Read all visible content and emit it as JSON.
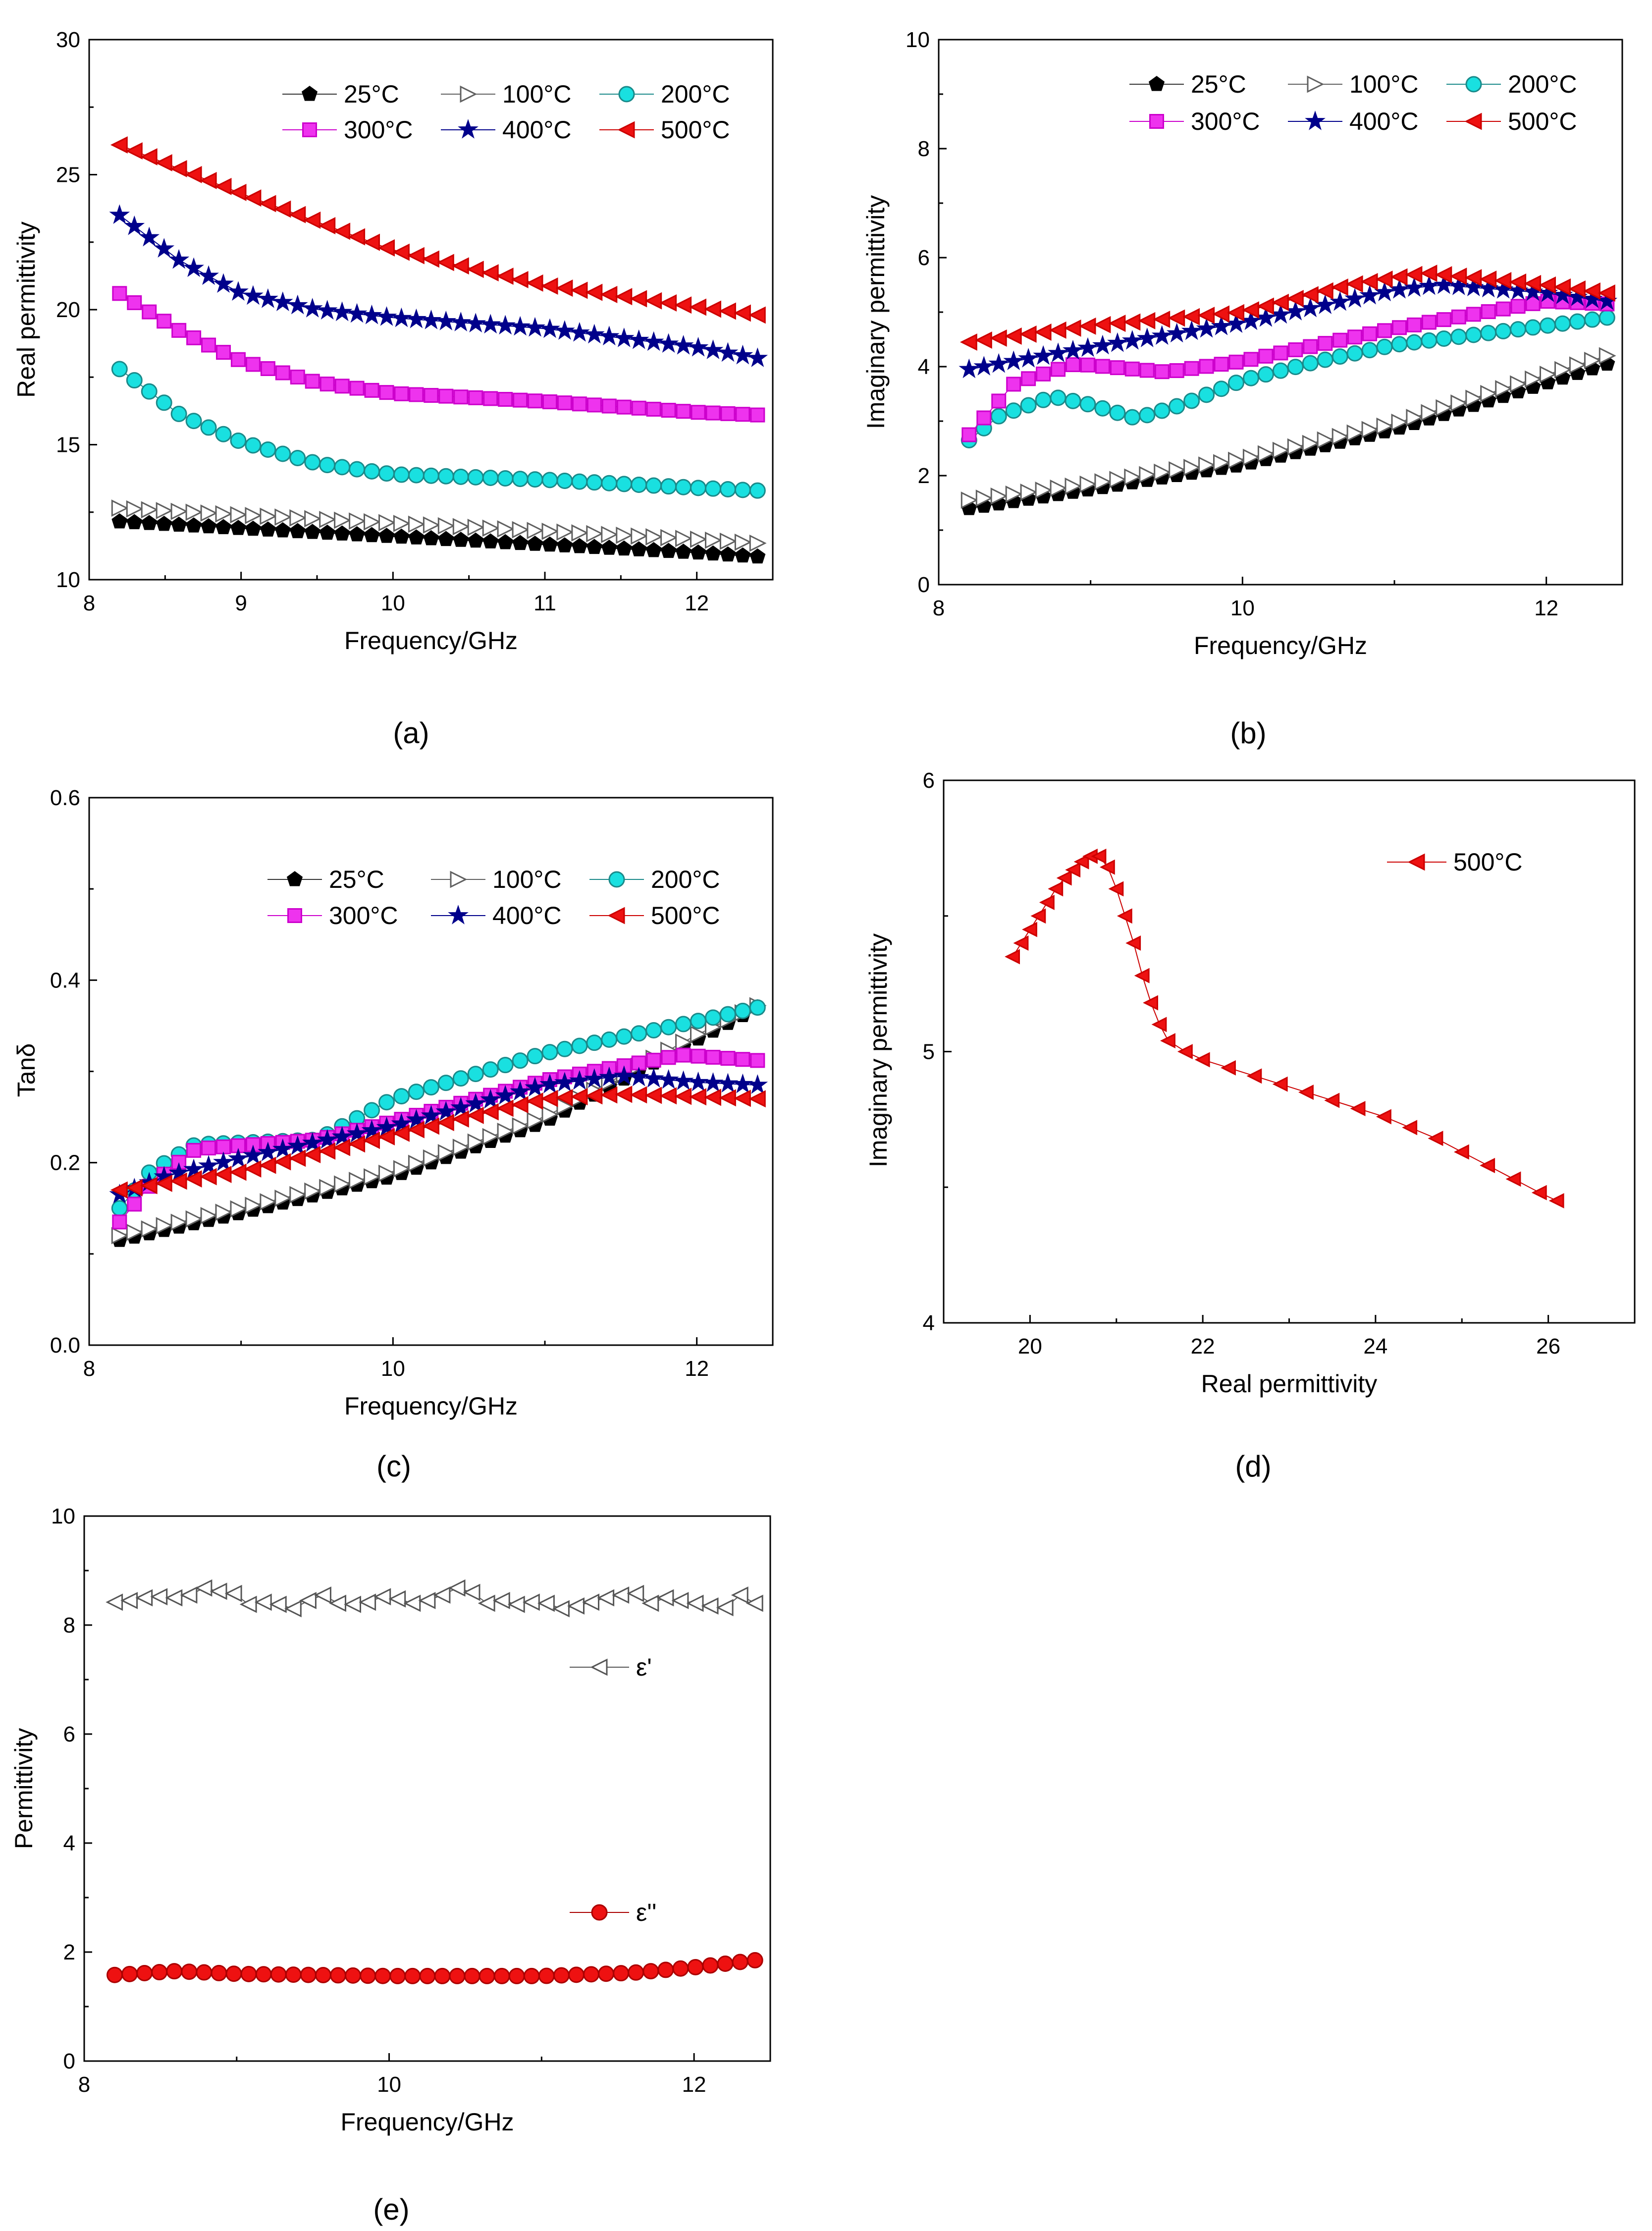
{
  "figure": {
    "panels": [
      "(a)",
      "(b)",
      "(c)",
      "(d)",
      "(e)"
    ]
  },
  "chart_data": [
    {
      "id": "a",
      "type": "scatter",
      "caption": "(a)",
      "title": "",
      "xlabel": "Frequency/GHz",
      "ylabel": "Real permittivity",
      "xlim": [
        8,
        12.5
      ],
      "ylim": [
        10,
        30
      ],
      "xticks": [
        8,
        9,
        10,
        11,
        12
      ],
      "yticks": [
        10,
        15,
        20,
        25,
        30
      ],
      "legend_position": "top-right",
      "x_range": [
        8.2,
        12.4
      ],
      "points_per_series": 44,
      "series": [
        {
          "name": "25°C",
          "marker": "pentagon",
          "color": "#000000",
          "fill": "#000000",
          "anchors": [
            [
              8.2,
              12.15
            ],
            [
              9,
              11.9
            ],
            [
              10,
              11.6
            ],
            [
              11,
              11.3
            ],
            [
              12,
              11.0
            ],
            [
              12.4,
              10.85
            ]
          ]
        },
        {
          "name": "100°C",
          "marker": "triangle-right",
          "color": "#606060",
          "fill": "none",
          "anchors": [
            [
              8.2,
              12.65
            ],
            [
              9,
              12.4
            ],
            [
              10,
              12.1
            ],
            [
              11,
              11.8
            ],
            [
              12,
              11.5
            ],
            [
              12.4,
              11.35
            ]
          ]
        },
        {
          "name": "200°C",
          "marker": "circle",
          "color": "#1a8a8a",
          "fill": "#19e0e0",
          "anchors": [
            [
              8.2,
              17.8
            ],
            [
              8.6,
              16.1
            ],
            [
              9,
              15.1
            ],
            [
              9.5,
              14.3
            ],
            [
              10,
              13.9
            ],
            [
              11,
              13.7
            ],
            [
              12,
              13.4
            ],
            [
              12.4,
              13.3
            ]
          ]
        },
        {
          "name": "300°C",
          "marker": "square",
          "color": "#cc00cc",
          "fill": "#ee33ee",
          "anchors": [
            [
              8.2,
              20.6
            ],
            [
              8.6,
              19.2
            ],
            [
              9,
              18.1
            ],
            [
              9.5,
              17.3
            ],
            [
              10,
              16.9
            ],
            [
              11,
              16.6
            ],
            [
              12,
              16.2
            ],
            [
              12.4,
              16.1
            ]
          ]
        },
        {
          "name": "400°C",
          "marker": "star",
          "color": "#00008b",
          "fill": "#00008b",
          "anchors": [
            [
              8.2,
              23.5
            ],
            [
              8.6,
              21.8
            ],
            [
              9,
              20.6
            ],
            [
              9.5,
              20.0
            ],
            [
              10,
              19.7
            ],
            [
              11,
              19.3
            ],
            [
              12,
              18.6
            ],
            [
              12.4,
              18.2
            ]
          ]
        },
        {
          "name": "500°C",
          "marker": "triangle-left",
          "color": "#cc0000",
          "fill": "#ee1111",
          "anchors": [
            [
              8.2,
              26.1
            ],
            [
              9,
              24.3
            ],
            [
              10,
              22.2
            ],
            [
              11,
              20.9
            ],
            [
              12,
              20.1
            ],
            [
              12.4,
              19.8
            ]
          ]
        }
      ]
    },
    {
      "id": "b",
      "type": "scatter",
      "caption": "(b)",
      "title": "",
      "xlabel": "Frequency/GHz",
      "ylabel": "Imaginary permittivity",
      "xlim": [
        8,
        12.5
      ],
      "ylim": [
        0,
        10
      ],
      "xticks": [
        8,
        10,
        12
      ],
      "yticks": [
        0,
        2,
        4,
        6,
        8,
        10
      ],
      "legend_position": "top-right",
      "x_range": [
        8.2,
        12.4
      ],
      "points_per_series": 44,
      "series": [
        {
          "name": "25°C",
          "marker": "pentagon",
          "color": "#000000",
          "fill": "#000000",
          "anchors": [
            [
              8.2,
              1.4
            ],
            [
              9,
              1.75
            ],
            [
              10,
              2.2
            ],
            [
              11,
              2.85
            ],
            [
              12,
              3.7
            ],
            [
              12.4,
              4.05
            ]
          ]
        },
        {
          "name": "100°C",
          "marker": "triangle-right",
          "color": "#606060",
          "fill": "none",
          "anchors": [
            [
              8.2,
              1.55
            ],
            [
              9,
              1.85
            ],
            [
              10,
              2.3
            ],
            [
              11,
              2.95
            ],
            [
              12,
              3.85
            ],
            [
              12.4,
              4.2
            ]
          ]
        },
        {
          "name": "200°C",
          "marker": "circle",
          "color": "#1a8a8a",
          "fill": "#19e0e0",
          "anchors": [
            [
              8.2,
              2.65
            ],
            [
              8.4,
              3.1
            ],
            [
              8.75,
              3.45
            ],
            [
              9.0,
              3.3
            ],
            [
              9.3,
              3.05
            ],
            [
              9.6,
              3.3
            ],
            [
              10,
              3.75
            ],
            [
              10.5,
              4.1
            ],
            [
              11,
              4.4
            ],
            [
              12,
              4.75
            ],
            [
              12.4,
              4.9
            ]
          ]
        },
        {
          "name": "300°C",
          "marker": "square",
          "color": "#cc00cc",
          "fill": "#ee33ee",
          "anchors": [
            [
              8.2,
              2.75
            ],
            [
              8.5,
              3.7
            ],
            [
              8.9,
              4.05
            ],
            [
              9.5,
              3.9
            ],
            [
              10,
              4.1
            ],
            [
              11,
              4.7
            ],
            [
              12,
              5.2
            ],
            [
              12.4,
              5.15
            ]
          ]
        },
        {
          "name": "400°C",
          "marker": "star",
          "color": "#00008b",
          "fill": "#00008b",
          "anchors": [
            [
              8.2,
              3.95
            ],
            [
              9,
              4.35
            ],
            [
              10,
              4.8
            ],
            [
              11,
              5.4
            ],
            [
              11.3,
              5.5
            ],
            [
              12,
              5.35
            ],
            [
              12.4,
              5.2
            ]
          ]
        },
        {
          "name": "500°C",
          "marker": "triangle-left",
          "color": "#cc0000",
          "fill": "#ee1111",
          "anchors": [
            [
              8.2,
              4.45
            ],
            [
              9,
              4.75
            ],
            [
              10,
              5.0
            ],
            [
              10.7,
              5.5
            ],
            [
              11.2,
              5.72
            ],
            [
              12,
              5.5
            ],
            [
              12.4,
              5.35
            ]
          ]
        }
      ]
    },
    {
      "id": "c",
      "type": "scatter",
      "caption": "(c)",
      "title": "",
      "xlabel": "Frequency/GHz",
      "ylabel": "Tanδ",
      "xlim": [
        8,
        12.5
      ],
      "ylim": [
        0,
        0.6
      ],
      "xticks": [
        8,
        10,
        12
      ],
      "yticks": [
        0.0,
        0.2,
        0.4,
        0.6
      ],
      "ytick_labels": [
        "0.0",
        "0.2",
        "0.4",
        "0.6"
      ],
      "legend_position": "top-right",
      "x_range": [
        8.2,
        12.4
      ],
      "points_per_series": 44,
      "series": [
        {
          "name": "25°C",
          "marker": "pentagon",
          "color": "#000000",
          "fill": "#000000",
          "anchors": [
            [
              8.2,
              0.115
            ],
            [
              9,
              0.145
            ],
            [
              10,
              0.185
            ],
            [
              11,
              0.245
            ],
            [
              12,
              0.335
            ],
            [
              12.4,
              0.37
            ]
          ]
        },
        {
          "name": "100°C",
          "marker": "triangle-right",
          "color": "#606060",
          "fill": "none",
          "anchors": [
            [
              8.2,
              0.12
            ],
            [
              9,
              0.15
            ],
            [
              10,
              0.19
            ],
            [
              11,
              0.25
            ],
            [
              12,
              0.34
            ],
            [
              12.4,
              0.372
            ]
          ]
        },
        {
          "name": "200°C",
          "marker": "circle",
          "color": "#1a8a8a",
          "fill": "#19e0e0",
          "anchors": [
            [
              8.2,
              0.15
            ],
            [
              8.4,
              0.19
            ],
            [
              8.7,
              0.22
            ],
            [
              9.5,
              0.225
            ],
            [
              10,
              0.27
            ],
            [
              11,
              0.32
            ],
            [
              12,
              0.355
            ],
            [
              12.4,
              0.37
            ]
          ]
        },
        {
          "name": "300°C",
          "marker": "square",
          "color": "#cc00cc",
          "fill": "#ee33ee",
          "anchors": [
            [
              8.2,
              0.135
            ],
            [
              8.4,
              0.175
            ],
            [
              8.7,
              0.215
            ],
            [
              9.5,
              0.225
            ],
            [
              10,
              0.245
            ],
            [
              11,
              0.29
            ],
            [
              11.9,
              0.318
            ],
            [
              12.4,
              0.312
            ]
          ]
        },
        {
          "name": "400°C",
          "marker": "star",
          "color": "#00008b",
          "fill": "#00008b",
          "anchors": [
            [
              8.2,
              0.165
            ],
            [
              8.5,
              0.185
            ],
            [
              9,
              0.205
            ],
            [
              10,
              0.24
            ],
            [
              11,
              0.285
            ],
            [
              11.5,
              0.295
            ],
            [
              12,
              0.288
            ],
            [
              12.4,
              0.285
            ]
          ]
        },
        {
          "name": "500°C",
          "marker": "triangle-left",
          "color": "#cc0000",
          "fill": "#ee1111",
          "anchors": [
            [
              8.2,
              0.17
            ],
            [
              9,
              0.19
            ],
            [
              10,
              0.23
            ],
            [
              11,
              0.27
            ],
            [
              11.5,
              0.275
            ],
            [
              12.4,
              0.27
            ]
          ]
        }
      ]
    },
    {
      "id": "d",
      "type": "line",
      "caption": "(d)",
      "title": "",
      "xlabel": "Real permittivity",
      "ylabel": "Imaginary permittivity",
      "xlim": [
        19,
        27
      ],
      "ylim": [
        4,
        6
      ],
      "xticks": [
        20,
        22,
        24,
        26
      ],
      "yticks": [
        4,
        5,
        6
      ],
      "legend_position": "top-right",
      "series": [
        {
          "name": "500°C",
          "marker": "triangle-left",
          "color": "#cc0000",
          "fill": "#ee1111",
          "points": [
            [
              19.8,
              5.35
            ],
            [
              19.9,
              5.4
            ],
            [
              20.0,
              5.45
            ],
            [
              20.1,
              5.5
            ],
            [
              20.2,
              5.55
            ],
            [
              20.3,
              5.6
            ],
            [
              20.4,
              5.64
            ],
            [
              20.5,
              5.67
            ],
            [
              20.6,
              5.7
            ],
            [
              20.7,
              5.72
            ],
            [
              20.8,
              5.72
            ],
            [
              20.9,
              5.68
            ],
            [
              21.0,
              5.6
            ],
            [
              21.1,
              5.5
            ],
            [
              21.2,
              5.4
            ],
            [
              21.3,
              5.28
            ],
            [
              21.4,
              5.18
            ],
            [
              21.5,
              5.1
            ],
            [
              21.6,
              5.04
            ],
            [
              21.8,
              5.0
            ],
            [
              22.0,
              4.97
            ],
            [
              22.3,
              4.94
            ],
            [
              22.6,
              4.91
            ],
            [
              22.9,
              4.88
            ],
            [
              23.2,
              4.85
            ],
            [
              23.5,
              4.82
            ],
            [
              23.8,
              4.79
            ],
            [
              24.1,
              4.76
            ],
            [
              24.4,
              4.72
            ],
            [
              24.7,
              4.68
            ],
            [
              25.0,
              4.63
            ],
            [
              25.3,
              4.58
            ],
            [
              25.6,
              4.53
            ],
            [
              25.9,
              4.48
            ],
            [
              26.1,
              4.45
            ]
          ]
        }
      ]
    },
    {
      "id": "e",
      "type": "scatter",
      "caption": "(e)",
      "title": "",
      "xlabel": "Frequency/GHz",
      "ylabel": "Permittivity",
      "xlim": [
        8,
        12.5
      ],
      "ylim": [
        0,
        10
      ],
      "xticks": [
        8,
        10,
        12
      ],
      "yticks": [
        0,
        2,
        4,
        6,
        8,
        10
      ],
      "legend_position": "right",
      "x_range": [
        8.2,
        12.4
      ],
      "points_per_series": 44,
      "series": [
        {
          "name": "ε'",
          "marker": "triangle-left",
          "color": "#555555",
          "fill": "none",
          "values": [
            8.42,
            8.45,
            8.5,
            8.52,
            8.5,
            8.55,
            8.68,
            8.62,
            8.58,
            8.38,
            8.42,
            8.38,
            8.3,
            8.45,
            8.55,
            8.4,
            8.38,
            8.42,
            8.52,
            8.48,
            8.4,
            8.45,
            8.55,
            8.68,
            8.6,
            8.4,
            8.45,
            8.38,
            8.42,
            8.4,
            8.3,
            8.35,
            8.42,
            8.5,
            8.55,
            8.58,
            8.4,
            8.5,
            8.45,
            8.4,
            8.35,
            8.32,
            8.55,
            8.4
          ]
        },
        {
          "name": "ε''",
          "marker": "circle",
          "color": "#aa0000",
          "fill": "#ee1111",
          "anchors": [
            [
              8.2,
              1.58
            ],
            [
              8.6,
              1.65
            ],
            [
              9,
              1.6
            ],
            [
              10,
              1.56
            ],
            [
              11,
              1.56
            ],
            [
              11.6,
              1.62
            ],
            [
              12,
              1.72
            ],
            [
              12.4,
              1.85
            ]
          ]
        }
      ]
    }
  ]
}
